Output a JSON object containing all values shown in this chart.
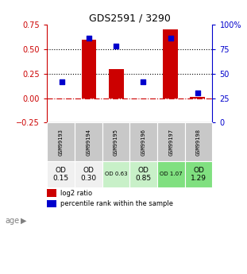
{
  "title": "GDS2591 / 3290",
  "samples": [
    "GSM99193",
    "GSM99194",
    "GSM99195",
    "GSM99196",
    "GSM99197",
    "GSM99198"
  ],
  "log2_ratio": [
    0.0,
    0.6,
    0.3,
    0.0,
    0.7,
    0.01
  ],
  "percentile_rank_pct": [
    42,
    86,
    78,
    42,
    86,
    30
  ],
  "ylim_left": [
    -0.25,
    0.75
  ],
  "ylim_right": [
    0,
    100
  ],
  "yticks_left": [
    -0.25,
    0,
    0.25,
    0.5,
    0.75
  ],
  "yticks_right": [
    0,
    25,
    50,
    75,
    100
  ],
  "hlines": [
    0.0,
    0.25,
    0.5
  ],
  "hline_styles": [
    "dashdot",
    "dotted",
    "dotted"
  ],
  "hline_colors": [
    "#cc0000",
    "#000000",
    "#000000"
  ],
  "bar_color": "#cc0000",
  "dot_color": "#0000cc",
  "age_labels": [
    "OD\n0.15",
    "OD\n0.30",
    "OD 0.63",
    "OD\n0.85",
    "OD 1.07",
    "OD\n1.29"
  ],
  "age_bg_colors": [
    "#f0f0f0",
    "#f0f0f0",
    "#c8f0c8",
    "#c8f0c8",
    "#80e080",
    "#80e080"
  ],
  "age_label_large": [
    true,
    true,
    false,
    true,
    false,
    true
  ],
  "sample_bg_color": "#c8c8c8",
  "legend_bar_label": "log2 ratio",
  "legend_dot_label": "percentile rank within the sample"
}
